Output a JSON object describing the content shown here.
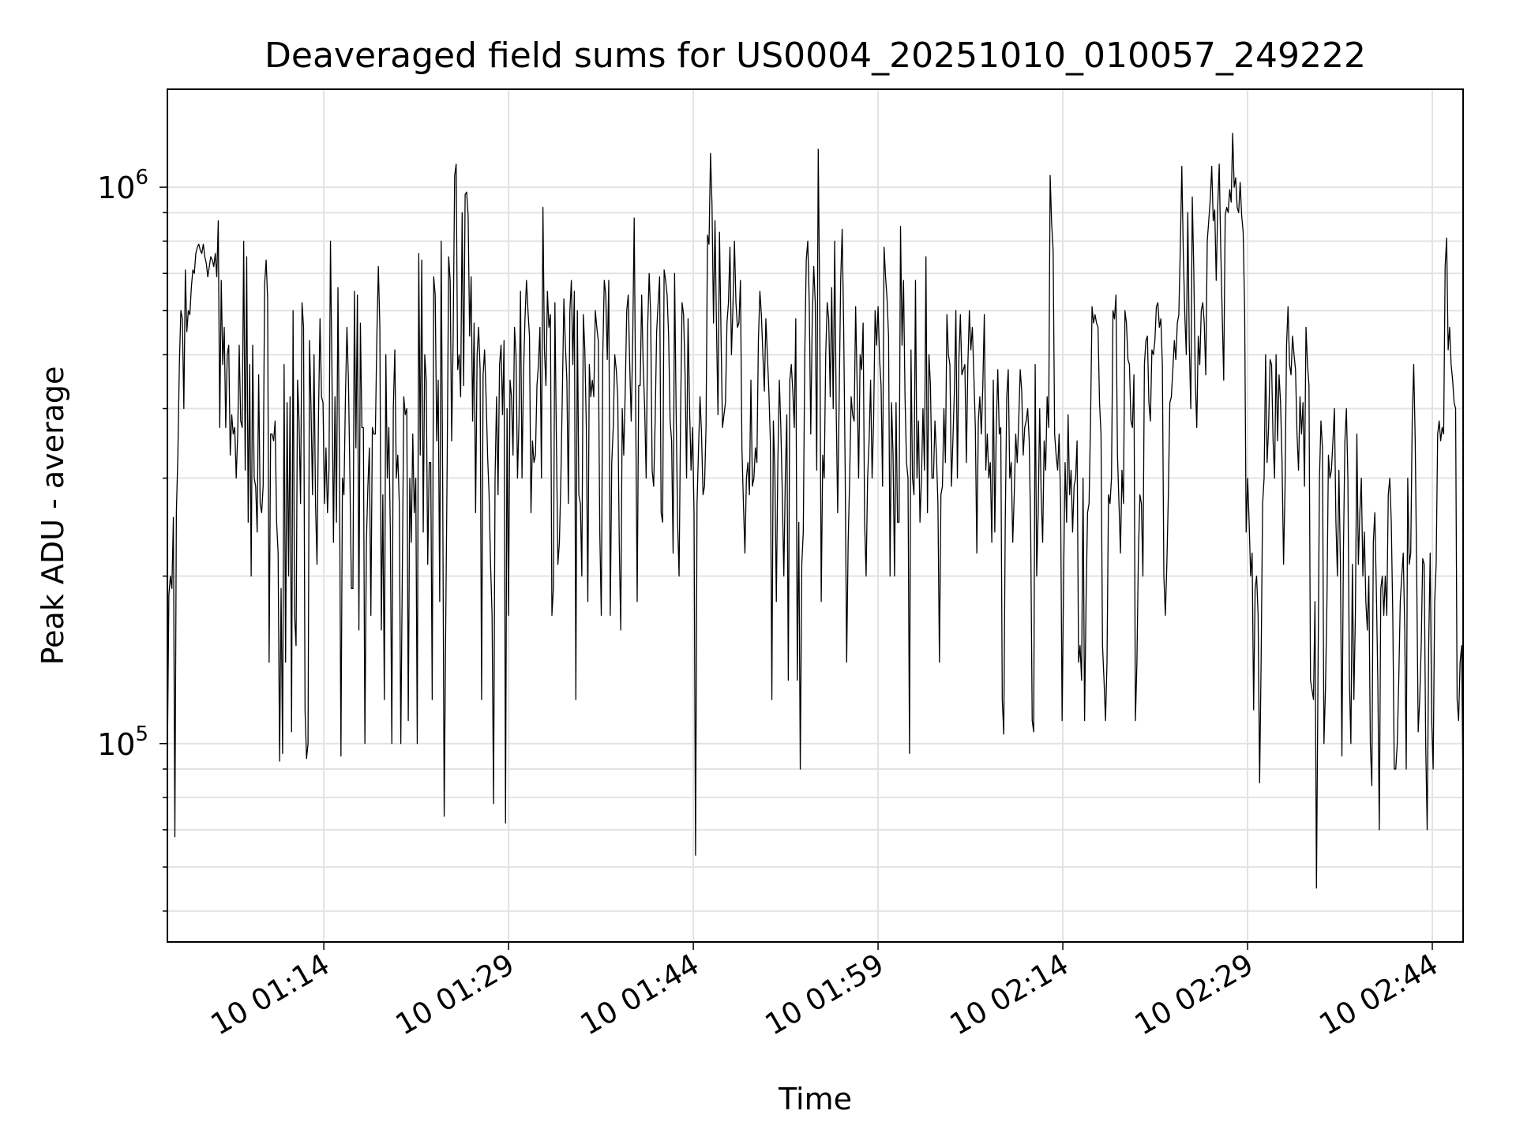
{
  "chart_data": {
    "type": "line",
    "title": "Deaveraged field sums for US0004_20251010_010057_249222",
    "xlabel": "Time",
    "ylabel": "Peak ADU - average",
    "yscale": "log",
    "ylim": [
      44000,
      1500000
    ],
    "xlim_minutes": [
      61.3,
      166.5
    ],
    "y_ticks": [
      {
        "value": 100000,
        "base": "10",
        "exp": "5"
      },
      {
        "value": 1000000,
        "base": "10",
        "exp": "6"
      }
    ],
    "x_ticks": [
      {
        "minute": 74,
        "label": "10 01:14"
      },
      {
        "minute": 89,
        "label": "10 01:29"
      },
      {
        "minute": 104,
        "label": "10 01:44"
      },
      {
        "minute": 119,
        "label": "10 01:59"
      },
      {
        "minute": 134,
        "label": "10 02:14"
      },
      {
        "minute": 149,
        "label": "10 02:29"
      },
      {
        "minute": 164,
        "label": "10 02:44"
      }
    ],
    "grid": true,
    "line_color": "#000000",
    "series": [
      {
        "name": "Peak ADU - average",
        "x_start_minute": 61.3,
        "x_end_minute": 166.5,
        "values": [
          95000,
          185000,
          200000,
          190000,
          255000,
          68000,
          260000,
          330000,
          480000,
          600000,
          580000,
          400000,
          710000,
          550000,
          600000,
          590000,
          660000,
          710000,
          700000,
          760000,
          780000,
          790000,
          770000,
          760000,
          790000,
          750000,
          730000,
          690000,
          720000,
          750000,
          740000,
          720000,
          760000,
          690000,
          870000,
          370000,
          680000,
          480000,
          560000,
          370000,
          500000,
          520000,
          330000,
          390000,
          360000,
          370000,
          300000,
          360000,
          520000,
          380000,
          370000,
          800000,
          310000,
          750000,
          250000,
          480000,
          200000,
          520000,
          300000,
          290000,
          240000,
          460000,
          270000,
          260000,
          290000,
          670000,
          740000,
          630000,
          140000,
          360000,
          360000,
          350000,
          380000,
          250000,
          220000,
          93000,
          190000,
          96000,
          480000,
          140000,
          410000,
          200000,
          420000,
          105000,
          600000,
          170000,
          150000,
          450000,
          380000,
          270000,
          620000,
          560000,
          115000,
          94000,
          100000,
          530000,
          400000,
          280000,
          500000,
          270000,
          210000,
          390000,
          580000,
          420000,
          410000,
          270000,
          340000,
          260000,
          310000,
          800000,
          460000,
          230000,
          420000,
          250000,
          660000,
          320000,
          95000,
          300000,
          280000,
          420000,
          560000,
          450000,
          300000,
          190000,
          190000,
          650000,
          340000,
          640000,
          160000,
          570000,
          370000,
          370000,
          100000,
          230000,
          290000,
          340000,
          170000,
          370000,
          360000,
          360000,
          540000,
          720000,
          560000,
          160000,
          280000,
          120000,
          500000,
          300000,
          370000,
          240000,
          100000,
          400000,
          510000,
          300000,
          330000,
          270000,
          100000,
          200000,
          420000,
          390000,
          400000,
          110000,
          300000,
          230000,
          360000,
          260000,
          300000,
          100000,
          760000,
          330000,
          740000,
          240000,
          500000,
          450000,
          210000,
          320000,
          320000,
          120000,
          690000,
          640000,
          350000,
          450000,
          180000,
          800000,
          290000,
          74000,
          160000,
          320000,
          750000,
          680000,
          350000,
          540000,
          1050000,
          1100000,
          470000,
          500000,
          420000,
          900000,
          440000,
          970000,
          980000,
          890000,
          540000,
          690000,
          380000,
          570000,
          260000,
          500000,
          560000,
          470000,
          120000,
          460000,
          510000,
          420000,
          330000,
          280000,
          210000,
          170000,
          78000,
          300000,
          420000,
          280000,
          480000,
          520000,
          390000,
          530000,
          72000,
          400000,
          170000,
          450000,
          420000,
          330000,
          560000,
          500000,
          300000,
          380000,
          650000,
          300000,
          460000,
          580000,
          680000,
          600000,
          540000,
          260000,
          350000,
          320000,
          330000,
          440000,
          480000,
          560000,
          300000,
          920000,
          510000,
          440000,
          650000,
          560000,
          590000,
          170000,
          190000,
          620000,
          350000,
          210000,
          230000,
          300000,
          430000,
          630000,
          520000,
          450000,
          270000,
          600000,
          680000,
          480000,
          650000,
          120000,
          600000,
          280000,
          270000,
          200000,
          590000,
          510000,
          370000,
          180000,
          480000,
          420000,
          450000,
          420000,
          600000,
          560000,
          530000,
          240000,
          170000,
          500000,
          680000,
          640000,
          490000,
          680000,
          170000,
          320000,
          370000,
          500000,
          470000,
          420000,
          230000,
          160000,
          400000,
          330000,
          430000,
          600000,
          640000,
          480000,
          380000,
          530000,
          880000,
          400000,
          180000,
          440000,
          440000,
          640000,
          480000,
          400000,
          300000,
          560000,
          700000,
          590000,
          310000,
          290000,
          380000,
          550000,
          620000,
          690000,
          260000,
          250000,
          710000,
          680000,
          640000,
          540000,
          380000,
          350000,
          220000,
          700000,
          400000,
          250000,
          200000,
          390000,
          620000,
          590000,
          460000,
          300000,
          580000,
          400000,
          310000,
          370000,
          260000,
          63000,
          270000,
          340000,
          420000,
          360000,
          280000,
          290000,
          370000,
          820000,
          790000,
          1150000,
          930000,
          570000,
          870000,
          560000,
          390000,
          830000,
          550000,
          370000,
          390000,
          410000,
          570000,
          620000,
          780000,
          500000,
          610000,
          800000,
          620000,
          560000,
          570000,
          680000,
          340000,
          270000,
          220000,
          300000,
          320000,
          280000,
          450000,
          290000,
          300000,
          340000,
          320000,
          530000,
          650000,
          590000,
          500000,
          430000,
          580000,
          500000,
          430000,
          350000,
          120000,
          380000,
          310000,
          180000,
          320000,
          450000,
          370000,
          280000,
          200000,
          300000,
          390000,
          130000,
          450000,
          480000,
          430000,
          370000,
          580000,
          130000,
          250000,
          90000,
          210000,
          240000,
          500000,
          740000,
          800000,
          620000,
          360000,
          580000,
          720000,
          620000,
          310000,
          1170000,
          610000,
          180000,
          330000,
          300000,
          500000,
          620000,
          580000,
          420000,
          660000,
          400000,
          800000,
          400000,
          260000,
          420000,
          680000,
          840000,
          560000,
          310000,
          140000,
          230000,
          300000,
          420000,
          390000,
          380000,
          610000,
          440000,
          300000,
          500000,
          470000,
          570000,
          250000,
          200000,
          300000,
          350000,
          450000,
          300000,
          380000,
          600000,
          520000,
          610000,
          490000,
          440000,
          290000,
          780000,
          690000,
          630000,
          540000,
          200000,
          410000,
          330000,
          200000,
          410000,
          250000,
          250000,
          850000,
          520000,
          680000,
          420000,
          320000,
          300000,
          96000,
          510000,
          300000,
          280000,
          680000,
          300000,
          380000,
          250000,
          300000,
          400000,
          310000,
          750000,
          260000,
          500000,
          440000,
          300000,
          300000,
          380000,
          330000,
          270000,
          140000,
          280000,
          290000,
          400000,
          320000,
          590000,
          500000,
          480000,
          290000,
          350000,
          430000,
          600000,
          300000,
          490000,
          590000,
          460000,
          470000,
          480000,
          320000,
          480000,
          600000,
          510000,
          560000,
          460000,
          370000,
          220000,
          380000,
          420000,
          360000,
          440000,
          590000,
          310000,
          360000,
          300000,
          320000,
          230000,
          450000,
          240000,
          370000,
          470000,
          360000,
          370000,
          120000,
          104000,
          250000,
          420000,
          470000,
          300000,
          320000,
          230000,
          280000,
          360000,
          320000,
          380000,
          470000,
          430000,
          330000,
          370000,
          380000,
          400000,
          350000,
          240000,
          110000,
          105000,
          480000,
          200000,
          260000,
          400000,
          280000,
          230000,
          350000,
          310000,
          420000,
          370000,
          1050000,
          860000,
          770000,
          360000,
          330000,
          310000,
          360000,
          270000,
          110000,
          200000,
          320000,
          250000,
          390000,
          280000,
          310000,
          240000,
          290000,
          300000,
          350000,
          140000,
          150000,
          130000,
          300000,
          110000,
          180000,
          260000,
          270000,
          380000,
          610000,
          570000,
          590000,
          570000,
          560000,
          410000,
          360000,
          150000,
          130000,
          110000,
          140000,
          280000,
          270000,
          300000,
          600000,
          580000,
          640000,
          330000,
          270000,
          220000,
          310000,
          270000,
          600000,
          570000,
          490000,
          480000,
          380000,
          370000,
          460000,
          110000,
          140000,
          220000,
          280000,
          270000,
          200000,
          480000,
          530000,
          540000,
          410000,
          380000,
          510000,
          500000,
          530000,
          610000,
          620000,
          560000,
          580000,
          480000,
          200000,
          170000,
          210000,
          280000,
          410000,
          420000,
          470000,
          530000,
          490000,
          570000,
          590000,
          780000,
          1090000,
          760000,
          590000,
          500000,
          900000,
          520000,
          400000,
          960000,
          710000,
          450000,
          370000,
          540000,
          480000,
          600000,
          620000,
          570000,
          460000,
          800000,
          870000,
          950000,
          1090000,
          870000,
          910000,
          680000,
          920000,
          1100000,
          780000,
          590000,
          450000,
          890000,
          920000,
          900000,
          990000,
          940000,
          1250000,
          1000000,
          1040000,
          920000,
          900000,
          1020000,
          890000,
          830000,
          600000,
          240000,
          300000,
          250000,
          200000,
          220000,
          115000,
          190000,
          200000,
          170000,
          85000,
          140000,
          270000,
          300000,
          500000,
          320000,
          370000,
          490000,
          480000,
          350000,
          300000,
          500000,
          350000,
          460000,
          410000,
          320000,
          210000,
          290000,
          520000,
          610000,
          480000,
          460000,
          540000,
          500000,
          470000,
          360000,
          310000,
          420000,
          360000,
          410000,
          290000,
          560000,
          480000,
          440000,
          130000,
          125000,
          120000,
          180000,
          55000,
          130000,
          300000,
          380000,
          340000,
          100000,
          125000,
          180000,
          330000,
          300000,
          310000,
          350000,
          400000,
          250000,
          200000,
          310000,
          210000,
          95000,
          220000,
          350000,
          400000,
          300000,
          130000,
          100000,
          210000,
          120000,
          170000,
          360000,
          210000,
          260000,
          300000,
          200000,
          240000,
          180000,
          160000,
          200000,
          100000,
          84000,
          230000,
          260000,
          190000,
          130000,
          70000,
          190000,
          200000,
          170000,
          200000,
          170000,
          280000,
          300000,
          250000,
          170000,
          90000,
          90000,
          100000,
          130000,
          180000,
          200000,
          220000,
          160000,
          90000,
          300000,
          210000,
          220000,
          380000,
          480000,
          350000,
          200000,
          105000,
          120000,
          150000,
          215000,
          210000,
          100000,
          70000,
          150000,
          220000,
          110000,
          90000,
          180000,
          210000,
          360000,
          380000,
          350000,
          370000,
          360000,
          720000,
          810000,
          510000,
          560000,
          480000,
          450000,
          410000,
          400000,
          120000,
          110000,
          140000,
          150000,
          80000
        ]
      }
    ]
  }
}
